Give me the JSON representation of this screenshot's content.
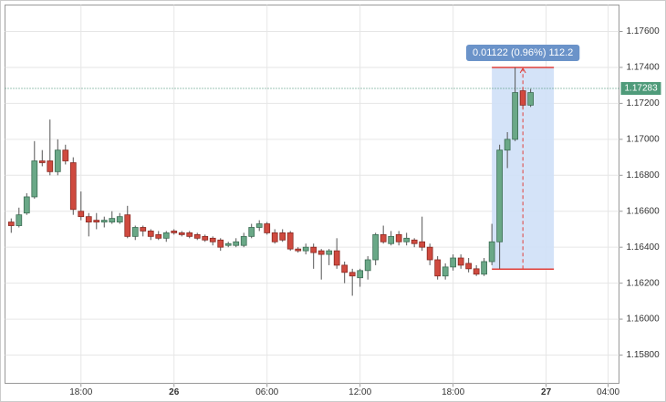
{
  "chart_data": {
    "type": "candlestick",
    "up_color": "#6aa887",
    "down_color": "#cf4a3f",
    "grid": true,
    "xlim": [
      -10.9,
      28.7
    ],
    "xticks": [
      {
        "value": -6,
        "label": "18:00"
      },
      {
        "value": 0,
        "label": "26"
      },
      {
        "value": 6,
        "label": "06:00"
      },
      {
        "value": 12,
        "label": "12:00"
      },
      {
        "value": 18,
        "label": "18:00"
      },
      {
        "value": 24,
        "label": "27"
      },
      {
        "value": 28,
        "label": "04:00"
      }
    ],
    "ylim": [
      1.15643,
      1.17747
    ],
    "yticks": [
      {
        "value": 1.158,
        "label": "1.15800"
      },
      {
        "value": 1.16,
        "label": "1.16000"
      },
      {
        "value": 1.162,
        "label": "1.16200"
      },
      {
        "value": 1.164,
        "label": "1.16400"
      },
      {
        "value": 1.166,
        "label": "1.16600"
      },
      {
        "value": 1.168,
        "label": "1.16800"
      },
      {
        "value": 1.17,
        "label": "1.17000"
      },
      {
        "value": 1.172,
        "label": "1.17200"
      },
      {
        "value": 1.174,
        "label": "1.17400"
      },
      {
        "value": 1.176,
        "label": "1.17600"
      }
    ],
    "last_price": 1.17283,
    "measure": {
      "x_range": [
        20.5,
        24.5
      ],
      "price_range": [
        1.16278,
        1.174
      ],
      "label": "0.01122 (0.96%) 112.2"
    },
    "x": [
      -10.5,
      -10,
      -9.5,
      -9,
      -8.5,
      -8,
      -7.5,
      -7,
      -6.5,
      -6,
      -5.5,
      -5,
      -4.5,
      -4,
      -3.5,
      -3,
      -2.5,
      -2,
      -1.5,
      -1,
      -0.5,
      0,
      0.5,
      1,
      1.5,
      2,
      2.5,
      3,
      3.5,
      4,
      4.5,
      5,
      5.5,
      6,
      6.5,
      7,
      7.5,
      8,
      8.5,
      9,
      9.5,
      10,
      10.5,
      11,
      11.5,
      12,
      12.5,
      13,
      13.5,
      14,
      14.5,
      15,
      15.5,
      16,
      16.5,
      17,
      17.5,
      18,
      18.5,
      19,
      19.5,
      20,
      20.5,
      21,
      21.5,
      22,
      22.5,
      23
    ],
    "open": [
      1.1654,
      1.1652,
      1.1659,
      1.1668,
      1.1688,
      1.1688,
      1.1682,
      1.1694,
      1.1687,
      1.166,
      1.1657,
      1.1655,
      1.1654,
      1.1654,
      1.1654,
      1.1658,
      1.1646,
      1.1651,
      1.1649,
      1.1647,
      1.1645,
      1.1649,
      1.1648,
      1.1648,
      1.1647,
      1.1646,
      1.1645,
      1.1644,
      1.1641,
      1.1641,
      1.1641,
      1.1646,
      1.1651,
      1.1653,
      1.1648,
      1.1648,
      1.1648,
      1.1639,
      1.1638,
      1.164,
      1.1638,
      1.1636,
      1.1638,
      1.163,
      1.1626,
      1.1623,
      1.1627,
      1.1633,
      1.1647,
      1.1642,
      1.1647,
      1.1643,
      1.1644,
      1.1643,
      1.164,
      1.1633,
      1.1624,
      1.1629,
      1.1634,
      1.1631,
      1.1628,
      1.1625,
      1.1632,
      1.1643,
      1.1694,
      1.17,
      1.1727,
      1.1719
    ],
    "high": [
      1.1656,
      1.1662,
      1.167,
      1.1699,
      1.1694,
      1.1711,
      1.17,
      1.1697,
      1.169,
      1.1671,
      1.1659,
      1.1659,
      1.1657,
      1.166,
      1.1659,
      1.1663,
      1.1652,
      1.1652,
      1.165,
      1.1649,
      1.1649,
      1.165,
      1.1649,
      1.1649,
      1.1648,
      1.1647,
      1.1646,
      1.1645,
      1.1643,
      1.1645,
      1.1648,
      1.1653,
      1.1655,
      1.1654,
      1.165,
      1.165,
      1.1649,
      1.164,
      1.1642,
      1.1642,
      1.1639,
      1.1639,
      1.1645,
      1.1632,
      1.1628,
      1.1628,
      1.1635,
      1.1648,
      1.1652,
      1.1649,
      1.1649,
      1.1648,
      1.1645,
      1.1657,
      1.1642,
      1.1635,
      1.1631,
      1.1636,
      1.1636,
      1.1634,
      1.163,
      1.1634,
      1.1653,
      1.1697,
      1.1704,
      1.174,
      1.1729,
      1.1728
    ],
    "low": [
      1.1648,
      1.1651,
      1.1658,
      1.1667,
      1.1685,
      1.168,
      1.168,
      1.1686,
      1.1658,
      1.1655,
      1.1646,
      1.165,
      1.1651,
      1.1653,
      1.1653,
      1.1645,
      1.1644,
      1.1646,
      1.1644,
      1.1644,
      1.1643,
      1.1647,
      1.1646,
      1.1645,
      1.1644,
      1.1643,
      1.1641,
      1.1638,
      1.164,
      1.164,
      1.164,
      1.1645,
      1.1649,
      1.1647,
      1.1642,
      1.1643,
      1.1638,
      1.1637,
      1.1636,
      1.1628,
      1.1622,
      1.163,
      1.1628,
      1.162,
      1.1613,
      1.1618,
      1.1622,
      1.163,
      1.1642,
      1.1641,
      1.1641,
      1.1641,
      1.164,
      1.1638,
      1.163,
      1.1622,
      1.1622,
      1.1627,
      1.1628,
      1.1626,
      1.1624,
      1.1624,
      1.163,
      1.1628,
      1.1684,
      1.1699,
      1.1717,
      1.1718
    ],
    "close": [
      1.1652,
      1.1658,
      1.1668,
      1.1688,
      1.1687,
      1.1682,
      1.1694,
      1.1688,
      1.1661,
      1.1657,
      1.1654,
      1.1654,
      1.1655,
      1.1656,
      1.1657,
      1.1646,
      1.1651,
      1.1649,
      1.1646,
      1.1645,
      1.1648,
      1.1648,
      1.1647,
      1.1646,
      1.1645,
      1.1644,
      1.1643,
      1.164,
      1.1642,
      1.1643,
      1.1646,
      1.1651,
      1.1653,
      1.1648,
      1.1643,
      1.1644,
      1.1639,
      1.1638,
      1.164,
      1.1637,
      1.1636,
      1.1638,
      1.163,
      1.1626,
      1.1624,
      1.1627,
      1.1633,
      1.1647,
      1.1643,
      1.1646,
      1.1643,
      1.1645,
      1.1642,
      1.164,
      1.1633,
      1.1624,
      1.1629,
      1.1634,
      1.163,
      1.1628,
      1.1625,
      1.1632,
      1.1643,
      1.1694,
      1.17,
      1.1726,
      1.1719,
      1.1726
    ]
  }
}
